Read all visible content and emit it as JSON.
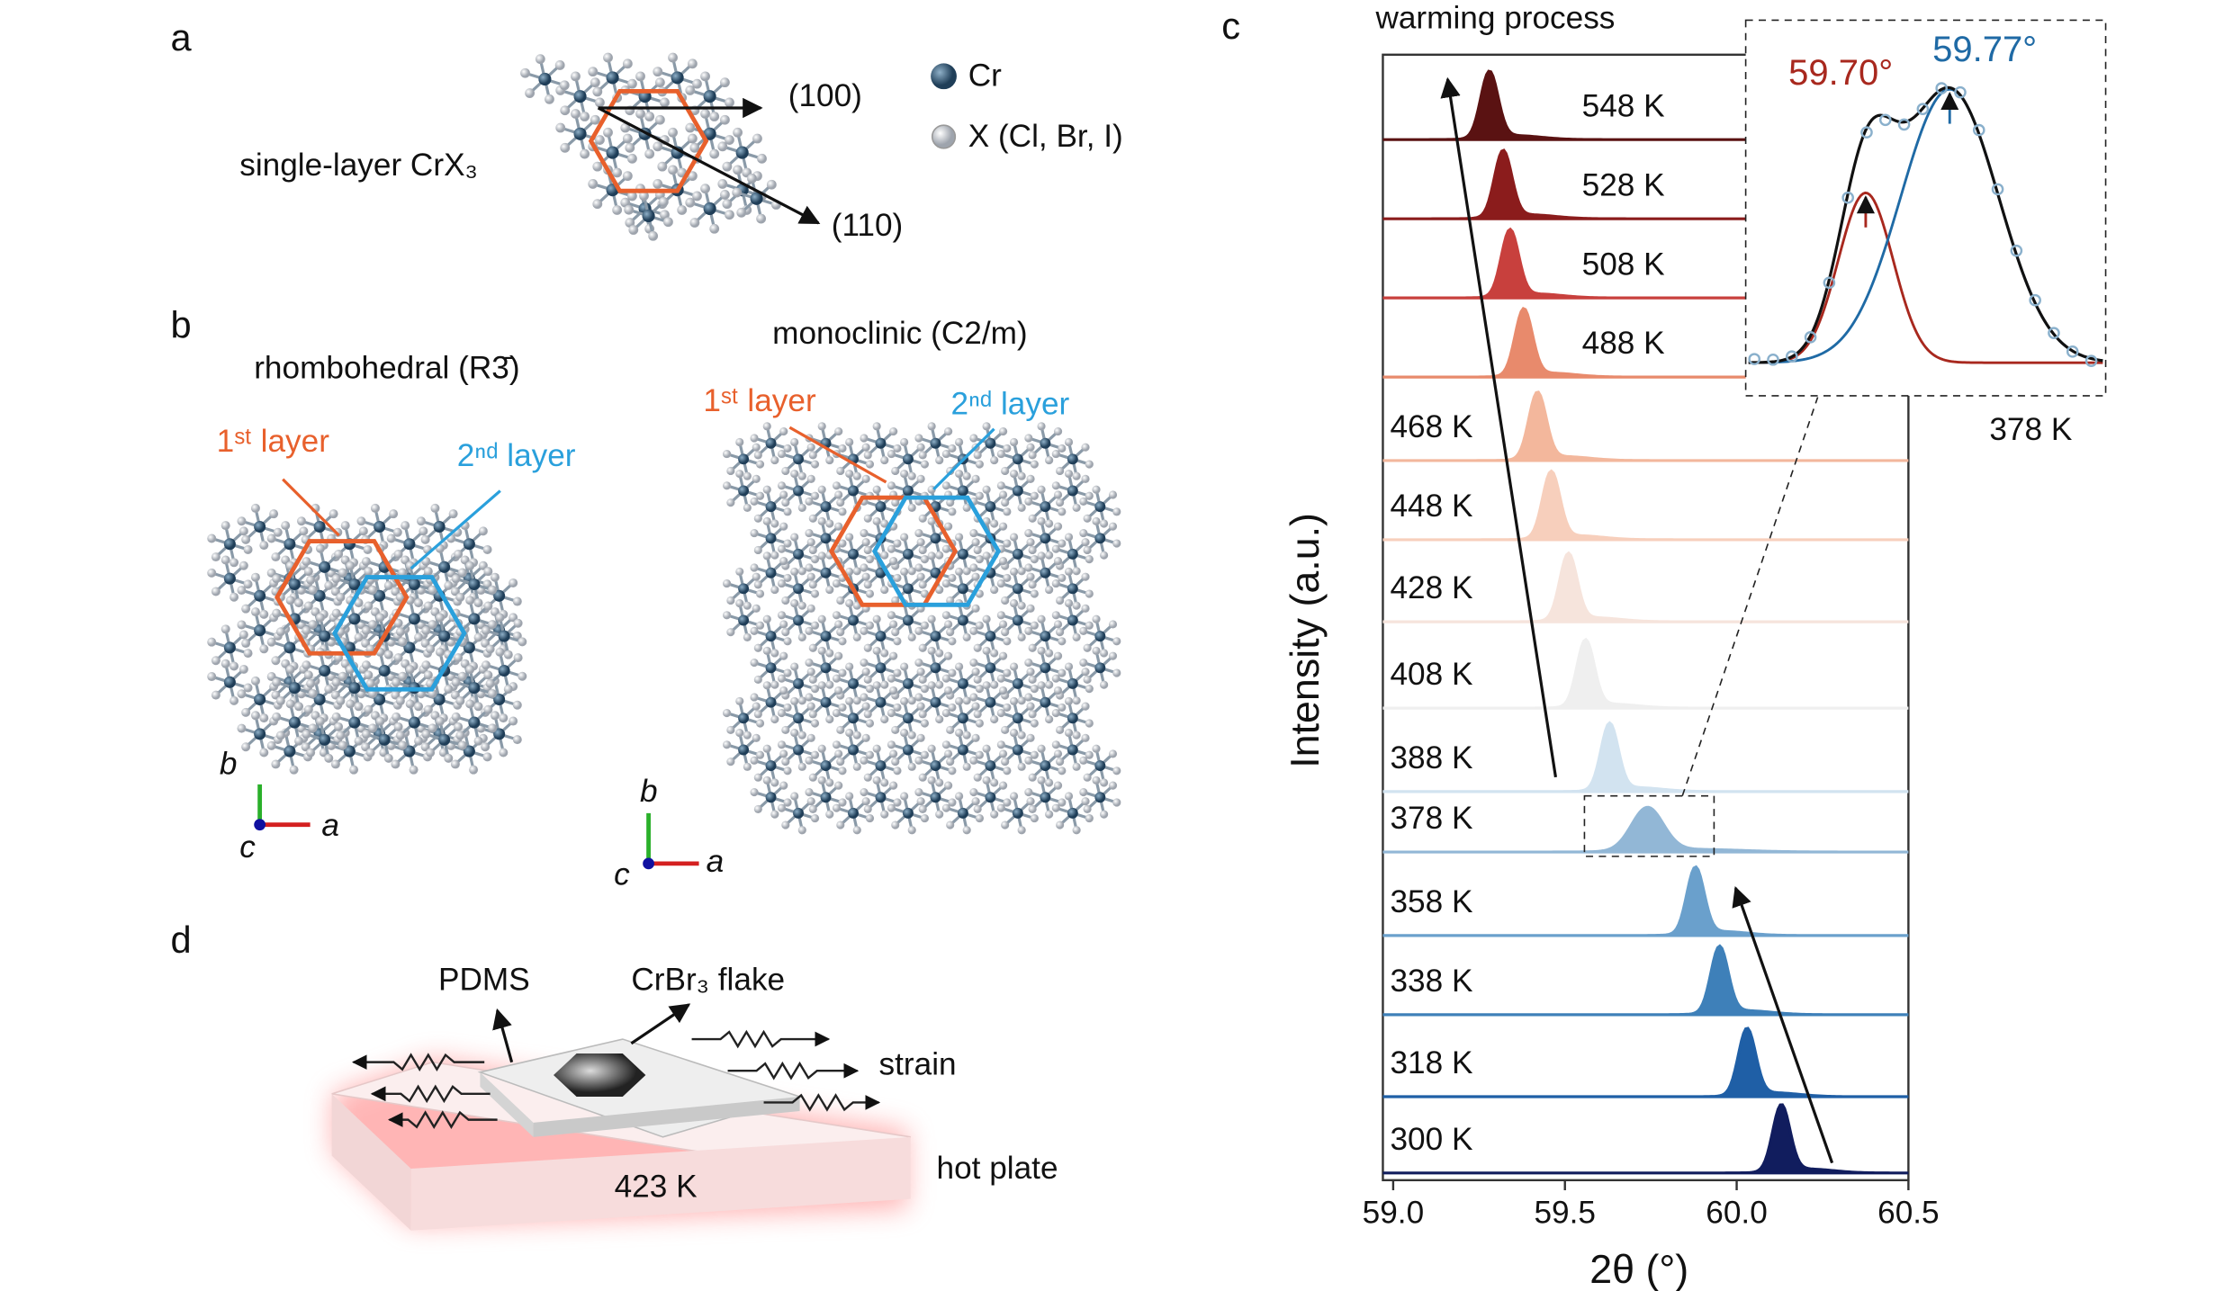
{
  "panels": {
    "a": {
      "label": "a",
      "caption": "single-layer CrX₃",
      "directions": [
        "(100)",
        "(110)"
      ],
      "legend": [
        "Cr",
        "X (Cl, Br, I)"
      ]
    },
    "b": {
      "label": "b",
      "rhombohedral": {
        "title": "rhombohedral (R3̄)",
        "layers": [
          "1ˢᵗ layer",
          "2ⁿᵈ layer"
        ],
        "axes": [
          "b",
          "c",
          "a"
        ]
      },
      "monoclinic": {
        "title": "monoclinic (C2/m)",
        "layers": [
          "1ˢᵗ layer",
          "2ⁿᵈ layer"
        ],
        "axes": [
          "b",
          "c",
          "a"
        ]
      }
    },
    "c": {
      "label": "c"
    },
    "d": {
      "label": "d",
      "pdms": "PDMS",
      "flake": "CrBr₃ flake",
      "strain": "strain",
      "hot_plate": "hot plate",
      "temperature": "423 K"
    }
  },
  "chart_data": {
    "type": "ridgeline",
    "title": "warming process",
    "xlabel": "2θ (°)",
    "ylabel": "Intensity (a.u.)",
    "categories": [
      "548 K",
      "528 K",
      "508 K",
      "488 K",
      "468 K",
      "448 K",
      "428 K",
      "408 K",
      "388 K",
      "378 K",
      "358 K",
      "338 K",
      "318 K",
      "300 K"
    ],
    "values": [
      59.28,
      59.32,
      59.34,
      59.38,
      59.42,
      59.46,
      59.51,
      59.56,
      59.63,
      59.74,
      59.88,
      59.95,
      60.03,
      60.13
    ],
    "colors": [
      "#5a1212",
      "#8b1c1c",
      "#c8403d",
      "#e88a6c",
      "#f3b79c",
      "#f7cfbc",
      "#f6e4dc",
      "#efefef",
      "#d2e3f0",
      "#92b7d6",
      "#6aa0cc",
      "#3e80b9",
      "#1f5fa6",
      "#111d5e"
    ],
    "xlim": [
      58.97,
      60.5
    ],
    "xticks": [
      {
        "value": 59,
        "label": "59.0"
      },
      59.5,
      {
        "value": 60,
        "label": "60.0"
      },
      60.5
    ],
    "inset": {
      "label": "378 K",
      "xlim": [
        59.6,
        59.9
      ],
      "peaks": [
        59.7,
        59.77
      ],
      "value_labels": [
        "59.70°",
        "59.77°"
      ],
      "colors": [
        "#a8281e",
        "#1f6aa5"
      ]
    }
  }
}
